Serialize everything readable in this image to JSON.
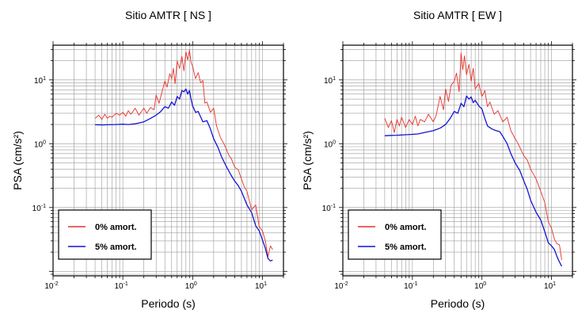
{
  "chart_data": [
    {
      "type": "line",
      "title": "Sitio AMTR [ NS ]",
      "xlabel": "Periodo (s)",
      "ylabel": "PSA (cm/s²)",
      "xscale": "log",
      "yscale": "log",
      "xlim": [
        0.01,
        20
      ],
      "ylim": [
        0.0085,
        35
      ],
      "grid": true,
      "legend_position": "bottom-left",
      "xticks": [
        {
          "value": 0.01,
          "base": "10",
          "exp": "-2"
        },
        {
          "value": 0.1,
          "base": "10",
          "exp": "-1"
        },
        {
          "value": 1,
          "base": "10",
          "exp": "0"
        },
        {
          "value": 10,
          "base": "10",
          "exp": "1"
        }
      ],
      "yticks": [
        {
          "value": 0.1,
          "base": "10",
          "exp": "-1"
        },
        {
          "value": 1,
          "base": "10",
          "exp": "0"
        },
        {
          "value": 10,
          "base": "10",
          "exp": "1"
        }
      ],
      "series": [
        {
          "name": "0% amort.",
          "color": "#e8302a",
          "x": [
            0.04,
            0.045,
            0.05,
            0.055,
            0.06,
            0.065,
            0.07,
            0.08,
            0.09,
            0.1,
            0.11,
            0.12,
            0.13,
            0.14,
            0.15,
            0.17,
            0.2,
            0.22,
            0.25,
            0.28,
            0.3,
            0.33,
            0.36,
            0.4,
            0.43,
            0.47,
            0.5,
            0.53,
            0.56,
            0.6,
            0.65,
            0.7,
            0.75,
            0.8,
            0.85,
            0.9,
            0.95,
            1.0,
            1.1,
            1.2,
            1.3,
            1.4,
            1.5,
            1.6,
            1.8,
            2.0,
            2.2,
            2.5,
            2.8,
            3.0,
            3.3,
            3.6,
            4.0,
            4.5,
            5.0,
            5.5,
            6.0,
            7.0,
            8.0,
            9.0,
            10,
            11,
            12,
            13,
            14
          ],
          "y": [
            2.5,
            2.8,
            2.4,
            2.9,
            2.5,
            2.7,
            2.6,
            3.0,
            2.8,
            3.1,
            2.7,
            3.3,
            2.9,
            3.2,
            3.6,
            2.8,
            3.6,
            3.0,
            3.7,
            3.4,
            5.8,
            4.3,
            6.2,
            9.6,
            7.7,
            12.5,
            10.4,
            15.2,
            8.7,
            19.8,
            15.1,
            23.5,
            13.8,
            27.6,
            20.5,
            29.3,
            18.7,
            16.3,
            10.5,
            13.0,
            9.0,
            9.8,
            4.3,
            4.5,
            3.1,
            3.6,
            1.9,
            1.25,
            1.0,
            0.85,
            0.66,
            0.58,
            0.43,
            0.39,
            0.28,
            0.21,
            0.18,
            0.092,
            0.11,
            0.05,
            0.043,
            0.03,
            0.017,
            0.025,
            0.022
          ]
        },
        {
          "name": "5% amort.",
          "color": "#1414d4",
          "x": [
            0.04,
            0.05,
            0.06,
            0.08,
            0.1,
            0.12,
            0.15,
            0.2,
            0.25,
            0.3,
            0.35,
            0.4,
            0.45,
            0.5,
            0.55,
            0.6,
            0.65,
            0.7,
            0.75,
            0.8,
            0.85,
            0.9,
            0.95,
            1.0,
            1.1,
            1.2,
            1.4,
            1.6,
            1.8,
            2.0,
            2.3,
            2.6,
            3.0,
            3.5,
            4.0,
            4.5,
            5.0,
            6.0,
            7.0,
            8.0,
            9.0,
            10,
            11,
            12,
            13,
            14
          ],
          "y": [
            1.98,
            1.97,
            1.98,
            2.0,
            2.02,
            2.0,
            2.05,
            2.2,
            2.5,
            2.8,
            3.2,
            3.8,
            3.6,
            4.5,
            4.0,
            5.5,
            5.0,
            6.8,
            6.5,
            7.2,
            6.0,
            6.8,
            5.0,
            3.9,
            3.1,
            3.2,
            2.2,
            2.3,
            1.7,
            1.2,
            0.88,
            0.62,
            0.45,
            0.33,
            0.26,
            0.22,
            0.18,
            0.11,
            0.083,
            0.052,
            0.043,
            0.031,
            0.023,
            0.016,
            0.0145,
            0.015
          ]
        }
      ]
    },
    {
      "type": "line",
      "title": "Sitio AMTR [ EW ]",
      "xlabel": "Periodo (s)",
      "ylabel": "PSA (cm/s²)",
      "xscale": "log",
      "yscale": "log",
      "xlim": [
        0.01,
        20
      ],
      "ylim": [
        0.0085,
        35
      ],
      "grid": true,
      "legend_position": "bottom-left",
      "xticks": [
        {
          "value": 0.01,
          "base": "10",
          "exp": "-2"
        },
        {
          "value": 0.1,
          "base": "10",
          "exp": "-1"
        },
        {
          "value": 1,
          "base": "10",
          "exp": "0"
        },
        {
          "value": 10,
          "base": "10",
          "exp": "1"
        }
      ],
      "yticks": [
        {
          "value": 0.1,
          "base": "10",
          "exp": "-1"
        },
        {
          "value": 1,
          "base": "10",
          "exp": "0"
        },
        {
          "value": 10,
          "base": "10",
          "exp": "1"
        }
      ],
      "series": [
        {
          "name": "0% amort.",
          "color": "#e8302a",
          "x": [
            0.04,
            0.045,
            0.05,
            0.055,
            0.06,
            0.065,
            0.07,
            0.08,
            0.09,
            0.1,
            0.11,
            0.12,
            0.13,
            0.15,
            0.17,
            0.2,
            0.22,
            0.25,
            0.28,
            0.3,
            0.33,
            0.36,
            0.4,
            0.43,
            0.47,
            0.5,
            0.53,
            0.56,
            0.6,
            0.65,
            0.7,
            0.75,
            0.8,
            0.9,
            1.0,
            1.1,
            1.2,
            1.3,
            1.5,
            1.7,
            2.0,
            2.3,
            2.6,
            3.0,
            3.3,
            3.6,
            4.0,
            4.5,
            5.0,
            6.0,
            7.0,
            8.0,
            9.0,
            10,
            11,
            12,
            13,
            14
          ],
          "y": [
            2.5,
            1.8,
            2.3,
            1.5,
            2.4,
            1.9,
            2.6,
            1.8,
            2.4,
            2.0,
            2.7,
            1.9,
            2.4,
            2.2,
            2.9,
            2.2,
            2.8,
            5.5,
            3.4,
            7.2,
            4.6,
            8.2,
            9.5,
            12.8,
            6.5,
            26.5,
            14.5,
            23.8,
            12.0,
            17.5,
            9.5,
            15.2,
            7.2,
            8.8,
            5.5,
            6.8,
            3.8,
            4.5,
            2.9,
            3.3,
            2.2,
            2.6,
            1.6,
            1.2,
            1.0,
            0.82,
            0.65,
            0.55,
            0.4,
            0.28,
            0.18,
            0.12,
            0.06,
            0.047,
            0.032,
            0.027,
            0.026,
            0.015
          ]
        },
        {
          "name": "5% amort.",
          "color": "#1414d4",
          "x": [
            0.04,
            0.05,
            0.06,
            0.08,
            0.1,
            0.12,
            0.15,
            0.2,
            0.25,
            0.3,
            0.35,
            0.4,
            0.45,
            0.5,
            0.55,
            0.6,
            0.65,
            0.7,
            0.75,
            0.8,
            0.9,
            1.0,
            1.1,
            1.2,
            1.4,
            1.6,
            1.8,
            2.0,
            2.3,
            2.6,
            3.0,
            3.5,
            4.0,
            4.5,
            5.0,
            6.0,
            7.0,
            8.0,
            9.0,
            10,
            11,
            12,
            13,
            14
          ],
          "y": [
            1.33,
            1.35,
            1.36,
            1.38,
            1.4,
            1.42,
            1.5,
            1.6,
            1.75,
            2.0,
            2.5,
            3.2,
            3.0,
            4.3,
            3.8,
            5.6,
            5.0,
            5.4,
            4.4,
            4.8,
            3.9,
            3.5,
            2.5,
            1.9,
            1.7,
            1.6,
            1.55,
            1.3,
            1.0,
            0.7,
            0.5,
            0.38,
            0.26,
            0.19,
            0.13,
            0.084,
            0.064,
            0.042,
            0.028,
            0.025,
            0.022,
            0.017,
            0.014,
            0.012
          ]
        }
      ]
    }
  ]
}
